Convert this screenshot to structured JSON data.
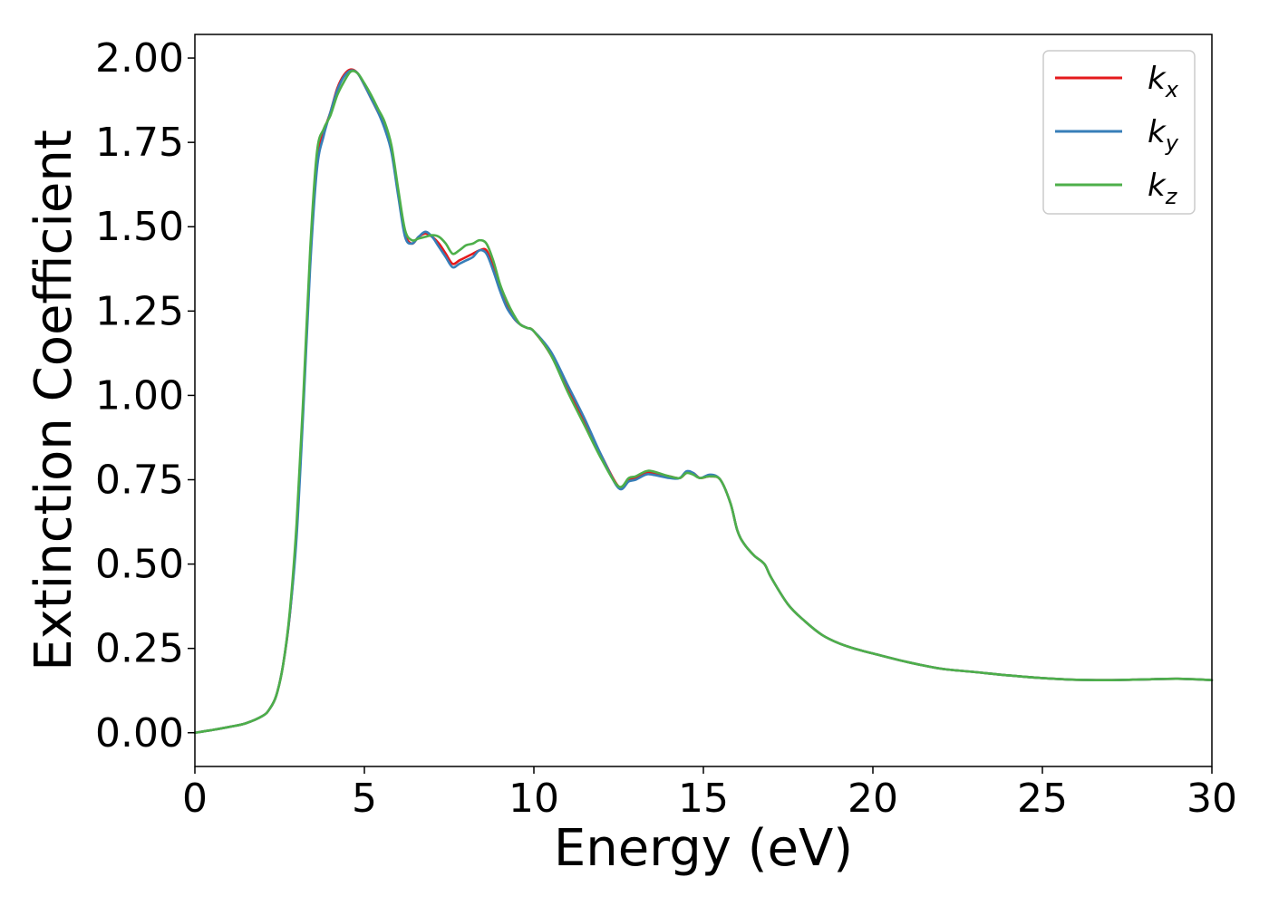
{
  "chart_data": {
    "type": "line",
    "title": "",
    "xlabel": "Energy (eV)",
    "ylabel": "Extinction Coefficient",
    "xlim": [
      0,
      30
    ],
    "ylim": [
      -0.1,
      2.07
    ],
    "xticks": [
      0,
      5,
      10,
      15,
      20,
      25,
      30
    ],
    "xtick_labels": [
      "0",
      "5",
      "10",
      "15",
      "20",
      "25",
      "30"
    ],
    "yticks": [
      0,
      0.25,
      0.5,
      0.75,
      1.0,
      1.25,
      1.5,
      1.75,
      2.0
    ],
    "ytick_labels": [
      "0.00",
      "0.25",
      "0.50",
      "0.75",
      "1.00",
      "1.25",
      "1.50",
      "1.75",
      "2.00"
    ],
    "grid": false,
    "legend_position": "top-right",
    "series": [
      {
        "name": "k_x",
        "label_main": "k",
        "label_sub": "x",
        "color": "#e41a1c",
        "points": [
          [
            0,
            0.0
          ],
          [
            0.5,
            0.008
          ],
          [
            1.0,
            0.017
          ],
          [
            1.5,
            0.028
          ],
          [
            2.0,
            0.05
          ],
          [
            2.2,
            0.07
          ],
          [
            2.4,
            0.11
          ],
          [
            2.6,
            0.2
          ],
          [
            2.8,
            0.35
          ],
          [
            3.0,
            0.6
          ],
          [
            3.2,
            0.98
          ],
          [
            3.4,
            1.4
          ],
          [
            3.6,
            1.69
          ],
          [
            3.8,
            1.78
          ],
          [
            4.0,
            1.84
          ],
          [
            4.2,
            1.91
          ],
          [
            4.4,
            1.95
          ],
          [
            4.6,
            1.966
          ],
          [
            4.8,
            1.955
          ],
          [
            5.0,
            1.92
          ],
          [
            5.2,
            1.88
          ],
          [
            5.4,
            1.84
          ],
          [
            5.6,
            1.8
          ],
          [
            5.8,
            1.73
          ],
          [
            6.0,
            1.6
          ],
          [
            6.2,
            1.48
          ],
          [
            6.4,
            1.45
          ],
          [
            6.6,
            1.47
          ],
          [
            6.8,
            1.48
          ],
          [
            7.0,
            1.47
          ],
          [
            7.2,
            1.45
          ],
          [
            7.4,
            1.42
          ],
          [
            7.6,
            1.39
          ],
          [
            7.8,
            1.4
          ],
          [
            8.0,
            1.41
          ],
          [
            8.2,
            1.42
          ],
          [
            8.4,
            1.43
          ],
          [
            8.6,
            1.43
          ],
          [
            8.8,
            1.38
          ],
          [
            9.0,
            1.32
          ],
          [
            9.2,
            1.27
          ],
          [
            9.4,
            1.23
          ],
          [
            9.6,
            1.21
          ],
          [
            9.8,
            1.2
          ],
          [
            10.0,
            1.19
          ],
          [
            10.5,
            1.12
          ],
          [
            11.0,
            1.02
          ],
          [
            11.5,
            0.92
          ],
          [
            12.0,
            0.82
          ],
          [
            12.5,
            0.73
          ],
          [
            12.8,
            0.75
          ],
          [
            13.0,
            0.755
          ],
          [
            13.3,
            0.77
          ],
          [
            13.5,
            0.77
          ],
          [
            14.0,
            0.76
          ],
          [
            14.3,
            0.755
          ],
          [
            14.5,
            0.77
          ],
          [
            14.7,
            0.77
          ],
          [
            14.9,
            0.755
          ],
          [
            15.2,
            0.76
          ],
          [
            15.5,
            0.75
          ],
          [
            15.8,
            0.68
          ],
          [
            16.0,
            0.6
          ],
          [
            16.2,
            0.56
          ],
          [
            16.5,
            0.525
          ],
          [
            16.8,
            0.5
          ],
          [
            17.0,
            0.46
          ],
          [
            17.5,
            0.38
          ],
          [
            18.0,
            0.33
          ],
          [
            18.5,
            0.29
          ],
          [
            19.0,
            0.265
          ],
          [
            19.5,
            0.248
          ],
          [
            20.0,
            0.235
          ],
          [
            21.0,
            0.21
          ],
          [
            22.0,
            0.19
          ],
          [
            23.0,
            0.18
          ],
          [
            24.0,
            0.17
          ],
          [
            25.0,
            0.162
          ],
          [
            26.0,
            0.157
          ],
          [
            27.0,
            0.156
          ],
          [
            28.0,
            0.158
          ],
          [
            29.0,
            0.16
          ],
          [
            30.0,
            0.156
          ]
        ]
      },
      {
        "name": "k_y",
        "label_main": "k",
        "label_sub": "y",
        "color": "#377eb8",
        "points": [
          [
            0,
            0.0
          ],
          [
            0.5,
            0.008
          ],
          [
            1.0,
            0.017
          ],
          [
            1.5,
            0.028
          ],
          [
            2.0,
            0.05
          ],
          [
            2.2,
            0.07
          ],
          [
            2.4,
            0.11
          ],
          [
            2.6,
            0.2
          ],
          [
            2.8,
            0.35
          ],
          [
            3.0,
            0.58
          ],
          [
            3.2,
            0.96
          ],
          [
            3.4,
            1.38
          ],
          [
            3.6,
            1.67
          ],
          [
            3.8,
            1.77
          ],
          [
            4.0,
            1.84
          ],
          [
            4.2,
            1.905
          ],
          [
            4.4,
            1.945
          ],
          [
            4.6,
            1.963
          ],
          [
            4.8,
            1.955
          ],
          [
            5.0,
            1.92
          ],
          [
            5.2,
            1.88
          ],
          [
            5.4,
            1.84
          ],
          [
            5.6,
            1.79
          ],
          [
            5.8,
            1.72
          ],
          [
            6.0,
            1.59
          ],
          [
            6.2,
            1.47
          ],
          [
            6.4,
            1.45
          ],
          [
            6.6,
            1.47
          ],
          [
            6.8,
            1.485
          ],
          [
            7.0,
            1.47
          ],
          [
            7.2,
            1.44
          ],
          [
            7.4,
            1.41
          ],
          [
            7.6,
            1.38
          ],
          [
            7.8,
            1.39
          ],
          [
            8.0,
            1.4
          ],
          [
            8.2,
            1.41
          ],
          [
            8.4,
            1.43
          ],
          [
            8.6,
            1.42
          ],
          [
            8.8,
            1.37
          ],
          [
            9.0,
            1.31
          ],
          [
            9.2,
            1.26
          ],
          [
            9.4,
            1.23
          ],
          [
            9.6,
            1.21
          ],
          [
            9.8,
            1.2
          ],
          [
            10.0,
            1.19
          ],
          [
            10.5,
            1.13
          ],
          [
            11.0,
            1.03
          ],
          [
            11.5,
            0.93
          ],
          [
            12.0,
            0.82
          ],
          [
            12.5,
            0.725
          ],
          [
            12.8,
            0.745
          ],
          [
            13.0,
            0.75
          ],
          [
            13.3,
            0.765
          ],
          [
            13.5,
            0.765
          ],
          [
            14.0,
            0.755
          ],
          [
            14.3,
            0.755
          ],
          [
            14.5,
            0.775
          ],
          [
            14.7,
            0.77
          ],
          [
            14.9,
            0.755
          ],
          [
            15.2,
            0.765
          ],
          [
            15.5,
            0.75
          ],
          [
            15.8,
            0.68
          ],
          [
            16.0,
            0.6
          ],
          [
            16.2,
            0.56
          ],
          [
            16.5,
            0.525
          ],
          [
            16.8,
            0.5
          ],
          [
            17.0,
            0.46
          ],
          [
            17.5,
            0.38
          ],
          [
            18.0,
            0.33
          ],
          [
            18.5,
            0.29
          ],
          [
            19.0,
            0.265
          ],
          [
            19.5,
            0.248
          ],
          [
            20.0,
            0.235
          ],
          [
            21.0,
            0.21
          ],
          [
            22.0,
            0.19
          ],
          [
            23.0,
            0.18
          ],
          [
            24.0,
            0.17
          ],
          [
            25.0,
            0.162
          ],
          [
            26.0,
            0.157
          ],
          [
            27.0,
            0.156
          ],
          [
            28.0,
            0.158
          ],
          [
            29.0,
            0.16
          ],
          [
            30.0,
            0.156
          ]
        ]
      },
      {
        "name": "k_z",
        "label_main": "k",
        "label_sub": "z",
        "color": "#4daf4a",
        "points": [
          [
            0,
            0.0
          ],
          [
            0.5,
            0.008
          ],
          [
            1.0,
            0.017
          ],
          [
            1.5,
            0.028
          ],
          [
            2.0,
            0.05
          ],
          [
            2.2,
            0.07
          ],
          [
            2.4,
            0.11
          ],
          [
            2.6,
            0.2
          ],
          [
            2.8,
            0.36
          ],
          [
            3.0,
            0.62
          ],
          [
            3.2,
            1.0
          ],
          [
            3.4,
            1.43
          ],
          [
            3.6,
            1.72
          ],
          [
            3.8,
            1.79
          ],
          [
            4.0,
            1.83
          ],
          [
            4.2,
            1.89
          ],
          [
            4.4,
            1.93
          ],
          [
            4.6,
            1.96
          ],
          [
            4.8,
            1.955
          ],
          [
            5.0,
            1.925
          ],
          [
            5.2,
            1.89
          ],
          [
            5.4,
            1.85
          ],
          [
            5.6,
            1.81
          ],
          [
            5.8,
            1.74
          ],
          [
            6.0,
            1.61
          ],
          [
            6.2,
            1.49
          ],
          [
            6.4,
            1.46
          ],
          [
            6.6,
            1.465
          ],
          [
            6.8,
            1.47
          ],
          [
            7.0,
            1.475
          ],
          [
            7.2,
            1.47
          ],
          [
            7.4,
            1.45
          ],
          [
            7.6,
            1.42
          ],
          [
            7.8,
            1.43
          ],
          [
            8.0,
            1.445
          ],
          [
            8.2,
            1.45
          ],
          [
            8.4,
            1.46
          ],
          [
            8.6,
            1.45
          ],
          [
            8.8,
            1.4
          ],
          [
            9.0,
            1.33
          ],
          [
            9.2,
            1.28
          ],
          [
            9.4,
            1.24
          ],
          [
            9.6,
            1.21
          ],
          [
            9.8,
            1.2
          ],
          [
            10.0,
            1.19
          ],
          [
            10.5,
            1.12
          ],
          [
            11.0,
            1.01
          ],
          [
            11.5,
            0.91
          ],
          [
            12.0,
            0.81
          ],
          [
            12.5,
            0.73
          ],
          [
            12.8,
            0.755
          ],
          [
            13.0,
            0.76
          ],
          [
            13.3,
            0.775
          ],
          [
            13.5,
            0.775
          ],
          [
            14.0,
            0.76
          ],
          [
            14.3,
            0.755
          ],
          [
            14.5,
            0.77
          ],
          [
            14.7,
            0.765
          ],
          [
            14.9,
            0.755
          ],
          [
            15.2,
            0.76
          ],
          [
            15.5,
            0.75
          ],
          [
            15.8,
            0.68
          ],
          [
            16.0,
            0.6
          ],
          [
            16.2,
            0.56
          ],
          [
            16.5,
            0.525
          ],
          [
            16.8,
            0.5
          ],
          [
            17.0,
            0.46
          ],
          [
            17.5,
            0.38
          ],
          [
            18.0,
            0.33
          ],
          [
            18.5,
            0.29
          ],
          [
            19.0,
            0.265
          ],
          [
            19.5,
            0.248
          ],
          [
            20.0,
            0.235
          ],
          [
            21.0,
            0.21
          ],
          [
            22.0,
            0.19
          ],
          [
            23.0,
            0.18
          ],
          [
            24.0,
            0.17
          ],
          [
            25.0,
            0.162
          ],
          [
            26.0,
            0.157
          ],
          [
            27.0,
            0.156
          ],
          [
            28.0,
            0.158
          ],
          [
            29.0,
            0.16
          ],
          [
            30.0,
            0.156
          ]
        ]
      }
    ]
  }
}
